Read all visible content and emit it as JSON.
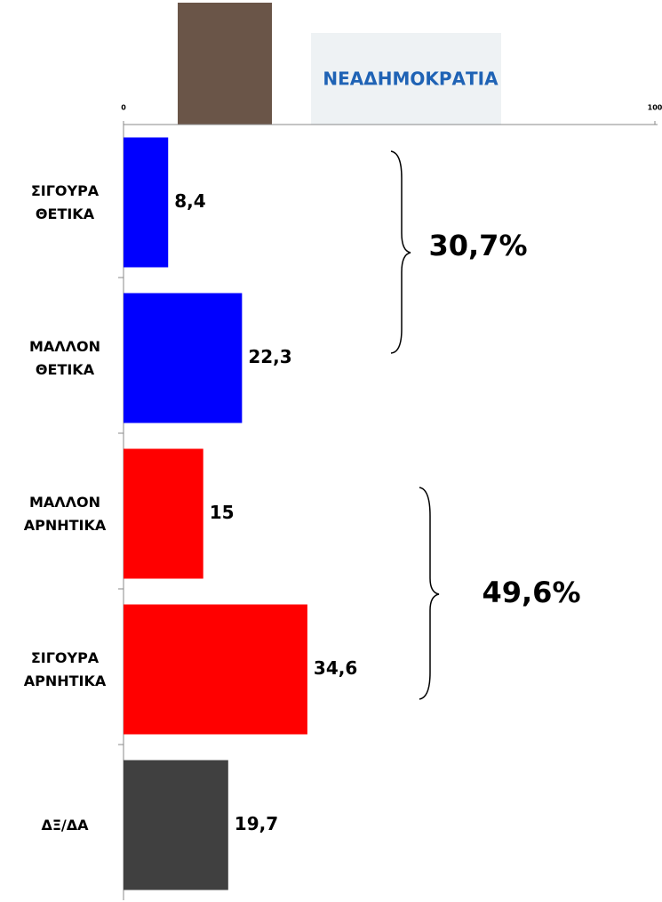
{
  "chart_data": {
    "type": "barh",
    "categories": [
      "ΣΙΓΟΥΡΑ ΘΕΤΙΚΑ",
      "ΜΑΛΛΟΝ ΘΕΤΙΚΑ",
      "ΜΑΛΛΟΝ ΑΡΝΗΤΙΚΑ",
      "ΣΙΓΟΥΡΑ ΑΡΝΗΤΙΚΑ",
      "ΔΞ/ΔΑ"
    ],
    "values": [
      8.4,
      22.3,
      15,
      34.6,
      19.7
    ],
    "value_labels": [
      "8,4",
      "22,3",
      "15",
      "34,6",
      "19,7"
    ],
    "colors": [
      "#0000ff",
      "#0000ff",
      "#ff0000",
      "#ff0000",
      "#404040"
    ],
    "xlim": [
      0,
      100
    ],
    "xticks": [
      0,
      100
    ],
    "annotations": [
      "30,7%",
      "49,6%"
    ],
    "logo_text": "ΝΕΑΔΗΜΟΚΡΑΤΙΑ"
  }
}
